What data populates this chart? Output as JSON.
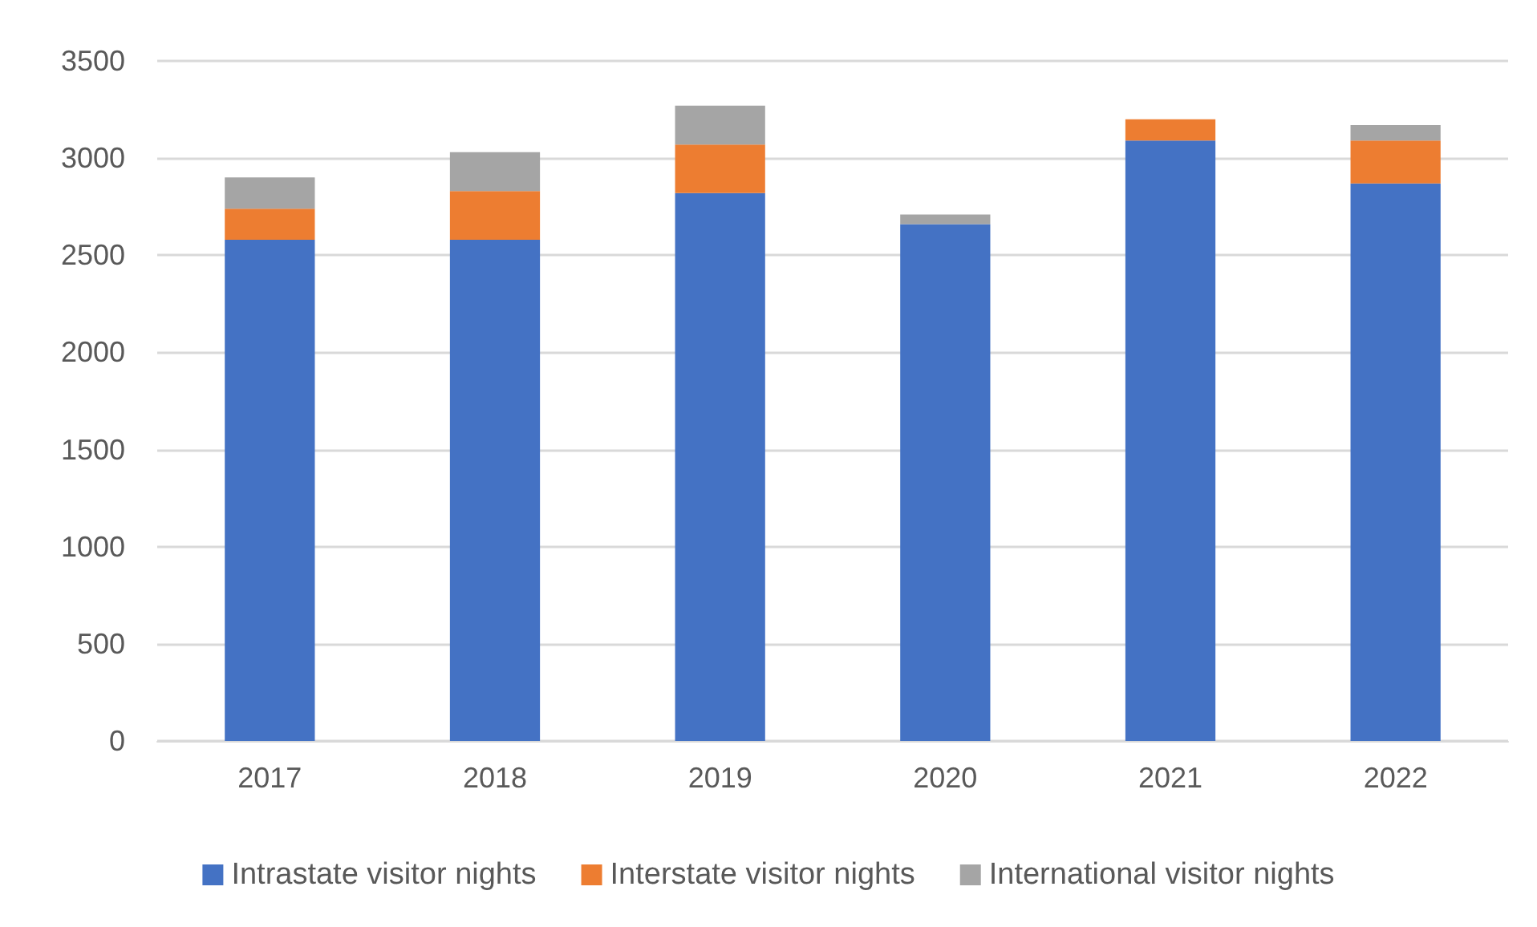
{
  "chart_data": {
    "type": "bar",
    "stacked": true,
    "categories": [
      "2017",
      "2018",
      "2019",
      "2020",
      "2021",
      "2022"
    ],
    "series": [
      {
        "name": "Intrastate visitor nights",
        "color": "#4472c4",
        "values": [
          2580,
          2580,
          2820,
          2660,
          3090,
          2870
        ]
      },
      {
        "name": "Interstate visitor nights",
        "color": "#ed7d31",
        "values": [
          160,
          250,
          250,
          0,
          110,
          220
        ]
      },
      {
        "name": "International visitor nights",
        "color": "#a5a5a5",
        "values": [
          160,
          200,
          200,
          50,
          0,
          80
        ]
      }
    ],
    "ylim": [
      0,
      3500
    ],
    "yticks": [
      0,
      500,
      1000,
      1500,
      2000,
      2500,
      3000,
      3500
    ],
    "grid": "y",
    "legend": "bottom"
  }
}
